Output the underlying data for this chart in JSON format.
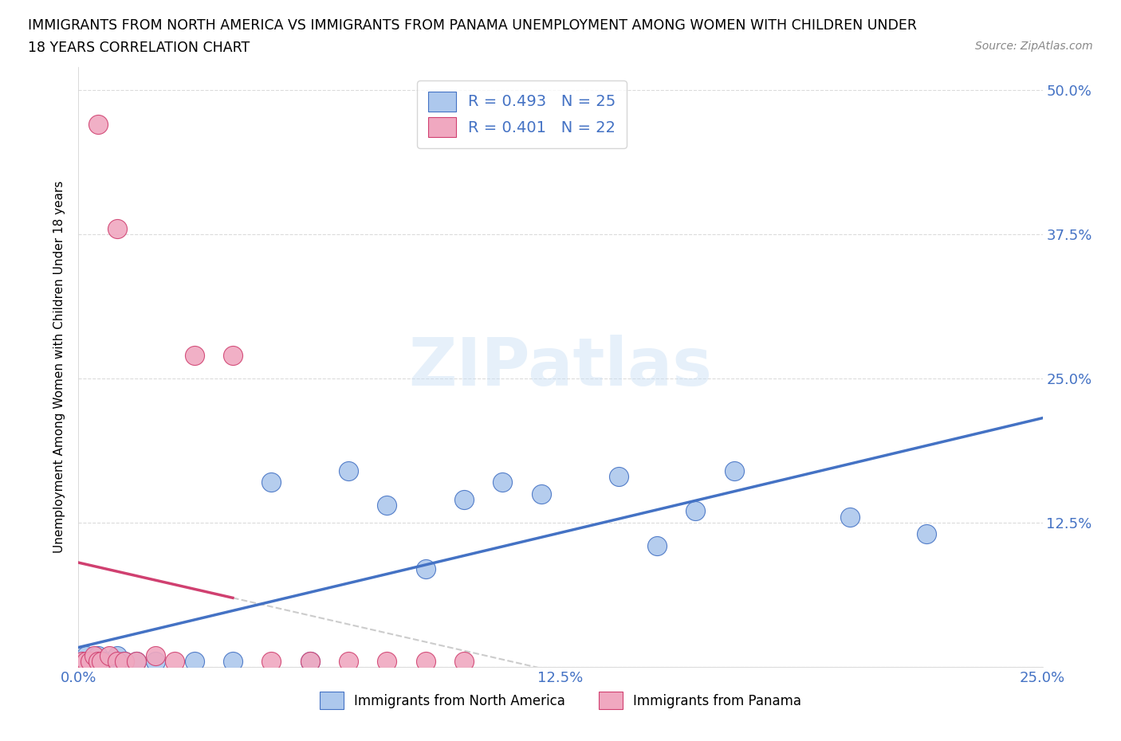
{
  "title_line1": "IMMIGRANTS FROM NORTH AMERICA VS IMMIGRANTS FROM PANAMA UNEMPLOYMENT AMONG WOMEN WITH CHILDREN UNDER",
  "title_line2": "18 YEARS CORRELATION CHART",
  "source_text": "Source: ZipAtlas.com",
  "ylabel": "Unemployment Among Women with Children Under 18 years",
  "xlim": [
    0.0,
    0.25
  ],
  "ylim": [
    0.0,
    0.52
  ],
  "r_north_america": 0.493,
  "n_north_america": 25,
  "r_panama": 0.401,
  "n_panama": 22,
  "north_america_color": "#adc8ed",
  "panama_color": "#f0a8c0",
  "trend_north_america_color": "#4472c4",
  "trend_panama_color": "#d04070",
  "background_color": "#ffffff",
  "grid_color": "#cccccc",
  "watermark": "ZIPatlas",
  "na_x": [
    0.001,
    0.002,
    0.003,
    0.005,
    0.007,
    0.01,
    0.012,
    0.015,
    0.02,
    0.03,
    0.04,
    0.05,
    0.06,
    0.07,
    0.08,
    0.09,
    0.1,
    0.11,
    0.12,
    0.14,
    0.15,
    0.16,
    0.17,
    0.2,
    0.22
  ],
  "na_y": [
    0.005,
    0.01,
    0.005,
    0.01,
    0.005,
    0.01,
    0.005,
    0.005,
    0.005,
    0.005,
    0.005,
    0.16,
    0.005,
    0.17,
    0.14,
    0.085,
    0.145,
    0.16,
    0.15,
    0.165,
    0.105,
    0.135,
    0.17,
    0.13,
    0.115
  ],
  "pa_x": [
    0.001,
    0.002,
    0.003,
    0.004,
    0.005,
    0.006,
    0.008,
    0.01,
    0.012,
    0.015,
    0.02,
    0.025,
    0.03,
    0.04,
    0.05,
    0.06,
    0.07,
    0.08,
    0.09,
    0.1,
    0.005,
    0.01
  ],
  "pa_y": [
    0.005,
    0.005,
    0.005,
    0.01,
    0.005,
    0.005,
    0.01,
    0.005,
    0.005,
    0.005,
    0.01,
    0.005,
    0.27,
    0.27,
    0.005,
    0.005,
    0.005,
    0.005,
    0.005,
    0.005,
    0.47,
    0.38
  ],
  "legend_items": [
    {
      "label": "R = 0.493   N = 25",
      "fc": "#adc8ed",
      "ec": "#4472c4"
    },
    {
      "label": "R = 0.401   N = 22",
      "fc": "#f0a8c0",
      "ec": "#d04070"
    }
  ],
  "bottom_legend_items": [
    {
      "label": "Immigrants from North America",
      "fc": "#adc8ed",
      "ec": "#4472c4"
    },
    {
      "label": "Immigrants from Panama",
      "fc": "#f0a8c0",
      "ec": "#d04070"
    }
  ]
}
